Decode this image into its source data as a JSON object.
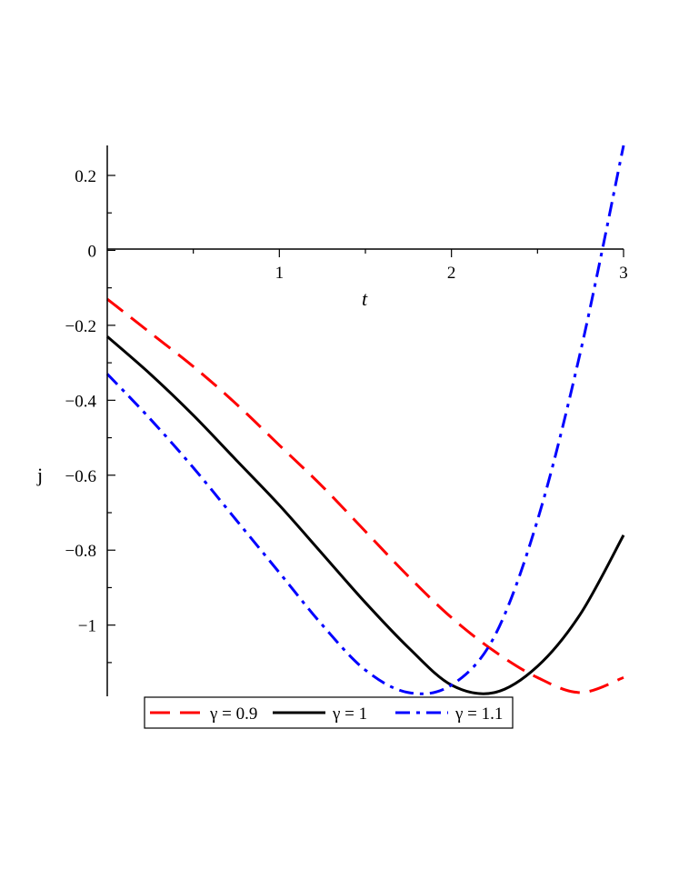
{
  "chart_data": {
    "type": "line",
    "xlabel": "t",
    "ylabel": "j",
    "xlim": [
      0,
      3
    ],
    "ylim": [
      -1.19,
      0.28
    ],
    "x_ticks": [
      {
        "value": 1,
        "label": "1"
      },
      {
        "value": 2,
        "label": "2"
      },
      {
        "value": 3,
        "label": "3"
      }
    ],
    "y_ticks": [
      {
        "value": 0.2,
        "label": "0.2"
      },
      {
        "value": 0,
        "label": "0"
      },
      {
        "value": -0.2,
        "label": "−0.2"
      },
      {
        "value": -0.4,
        "label": "−0.4"
      },
      {
        "value": -0.6,
        "label": "−0.6"
      },
      {
        "value": -0.8,
        "label": "−0.8"
      },
      {
        "value": -1,
        "label": "−1"
      }
    ],
    "grid": false,
    "legend_position": "bottom",
    "series": [
      {
        "name": "γ = 0.9",
        "color": "#ff0000",
        "dash": "dash",
        "x": [
          0,
          0.25,
          0.5,
          0.75,
          1.0,
          1.25,
          1.5,
          1.75,
          2.0,
          2.25,
          2.5,
          2.75,
          3.0
        ],
        "y": [
          -0.13,
          -0.22,
          -0.31,
          -0.41,
          -0.52,
          -0.63,
          -0.75,
          -0.87,
          -0.98,
          -1.07,
          -1.14,
          -1.18,
          -1.14
        ]
      },
      {
        "name": "γ = 1",
        "color": "#000000",
        "dash": "solid",
        "x": [
          0,
          0.25,
          0.5,
          0.75,
          1.0,
          1.25,
          1.5,
          1.75,
          2.0,
          2.25,
          2.5,
          2.75,
          3.0
        ],
        "y": [
          -0.23,
          -0.33,
          -0.44,
          -0.56,
          -0.68,
          -0.81,
          -0.94,
          -1.06,
          -1.16,
          -1.18,
          -1.11,
          -0.97,
          -0.76
        ]
      },
      {
        "name": "γ = 1.1",
        "color": "#0000ff",
        "dash": "dashdot",
        "x": [
          0,
          0.25,
          0.5,
          0.75,
          1.0,
          1.25,
          1.5,
          1.75,
          2.0,
          2.25,
          2.5,
          2.75,
          3.0
        ],
        "y": [
          -0.33,
          -0.45,
          -0.58,
          -0.72,
          -0.86,
          -1.0,
          -1.12,
          -1.18,
          -1.16,
          -1.03,
          -0.72,
          -0.27,
          0.28
        ]
      }
    ]
  }
}
